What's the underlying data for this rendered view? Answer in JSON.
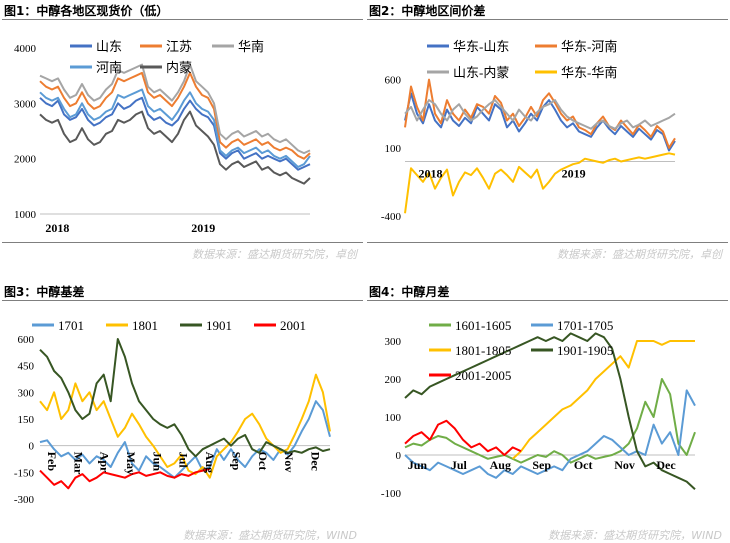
{
  "panels": [
    {
      "title": "图1：中醇各地区现货价（低）",
      "source": "数据来源：盛达期货研究院，卓创"
    },
    {
      "title": "图2：中醇地区间价差",
      "source": "数据来源：盛达期货研究院，卓创"
    },
    {
      "title": "图3：中醇基差",
      "source": "数据来源：盛达期货研究院，WIND"
    },
    {
      "title": "图4：中醇月差",
      "source": "数据来源：盛达期货研究院，WIND"
    }
  ],
  "chart_data": [
    {
      "type": "line",
      "xlabels": [
        "2018",
        "2019"
      ],
      "ylim": [
        1000,
        4000
      ],
      "yticks": [
        1000,
        2000,
        3000,
        4000
      ],
      "legend": "top",
      "series": [
        {
          "name": "山东",
          "color": "#4472c4",
          "values": [
            3100,
            3000,
            2950,
            3050,
            2800,
            2700,
            2750,
            2900,
            2700,
            2600,
            2650,
            2750,
            2800,
            3000,
            2900,
            2950,
            3050,
            3100,
            2800,
            2700,
            2750,
            2650,
            2600,
            2700,
            2900,
            3050,
            2900,
            2800,
            2750,
            2600,
            2100,
            2000,
            2100,
            2150,
            2000,
            2050,
            2100,
            2000,
            2050,
            2000,
            1950,
            2000,
            1900,
            1800,
            1850,
            1900
          ]
        },
        {
          "name": "江苏",
          "color": "#ed7d31",
          "values": [
            3400,
            3300,
            3250,
            3300,
            3100,
            2950,
            3000,
            3200,
            3000,
            2900,
            2950,
            3100,
            3200,
            3450,
            3400,
            3450,
            3500,
            3550,
            3200,
            3100,
            3150,
            3050,
            2950,
            3100,
            3300,
            3550,
            3300,
            3150,
            3100,
            2900,
            2300,
            2200,
            2300,
            2350,
            2250,
            2300,
            2350,
            2250,
            2300,
            2200,
            2150,
            2200,
            2150,
            2050,
            2000,
            2100
          ]
        },
        {
          "name": "华南",
          "color": "#a5a5a5",
          "values": [
            3500,
            3450,
            3400,
            3450,
            3250,
            3100,
            3150,
            3350,
            3150,
            3050,
            3100,
            3250,
            3350,
            3600,
            3550,
            3600,
            3650,
            3700,
            3300,
            3200,
            3250,
            3150,
            3050,
            3200,
            3400,
            3700,
            3400,
            3300,
            3200,
            3000,
            2450,
            2350,
            2450,
            2500,
            2400,
            2450,
            2500,
            2400,
            2450,
            2350,
            2300,
            2350,
            2250,
            2150,
            2100,
            2150
          ]
        },
        {
          "name": "河南",
          "color": "#5b9bd5",
          "values": [
            3200,
            3100,
            3050,
            3100,
            2900,
            2750,
            2800,
            3000,
            2800,
            2700,
            2750,
            2850,
            2900,
            3150,
            3100,
            3150,
            3200,
            3250,
            2950,
            2850,
            2900,
            2800,
            2700,
            2850,
            3050,
            3200,
            3000,
            2900,
            2850,
            2700,
            2150,
            2050,
            2150,
            2200,
            2100,
            2150,
            2200,
            2100,
            2150,
            2050,
            2000,
            2050,
            1950,
            1850,
            1900,
            2050
          ]
        },
        {
          "name": "内蒙",
          "color": "#595959",
          "values": [
            2800,
            2700,
            2650,
            2700,
            2450,
            2300,
            2350,
            2550,
            2350,
            2250,
            2300,
            2450,
            2500,
            2700,
            2650,
            2700,
            2800,
            2850,
            2550,
            2450,
            2500,
            2400,
            2300,
            2450,
            2700,
            2850,
            2600,
            2500,
            2400,
            2250,
            1900,
            1800,
            1900,
            1950,
            1850,
            1900,
            1950,
            1800,
            1850,
            1750,
            1700,
            1750,
            1650,
            1600,
            1550,
            1650
          ]
        }
      ]
    },
    {
      "type": "line",
      "xlabels": [
        "2018",
        "2019"
      ],
      "ylim": [
        -400,
        700
      ],
      "yticks": [
        -400,
        100,
        600
      ],
      "legend": "top",
      "series": [
        {
          "name": "华东-山东",
          "color": "#4472c4",
          "values": [
            300,
            500,
            350,
            280,
            420,
            300,
            250,
            380,
            300,
            260,
            320,
            280,
            400,
            350,
            300,
            420,
            380,
            250,
            300,
            220,
            280,
            350,
            300,
            400,
            450,
            380,
            300,
            250,
            280,
            220,
            200,
            180,
            250,
            300,
            240,
            200,
            260,
            220,
            180,
            240,
            200,
            160,
            230,
            200,
            80,
            150
          ]
        },
        {
          "name": "华东-河南",
          "color": "#ed7d31",
          "values": [
            250,
            550,
            400,
            300,
            600,
            350,
            280,
            450,
            350,
            300,
            380,
            320,
            420,
            400,
            350,
            480,
            430,
            300,
            350,
            260,
            320,
            400,
            330,
            450,
            500,
            430,
            350,
            300,
            330,
            250,
            230,
            200,
            280,
            330,
            260,
            230,
            300,
            250,
            200,
            270,
            230,
            180,
            260,
            220,
            100,
            170
          ]
        },
        {
          "name": "山东-内蒙",
          "color": "#a5a5a5",
          "values": [
            350,
            400,
            300,
            380,
            450,
            420,
            350,
            300,
            380,
            420,
            350,
            300,
            330,
            380,
            420,
            450,
            400,
            350,
            300,
            380,
            330,
            300,
            360,
            400,
            420,
            450,
            380,
            330,
            300,
            280,
            260,
            240,
            280,
            300,
            260,
            240,
            280,
            300,
            250,
            270,
            300,
            260,
            280,
            300,
            320,
            350
          ]
        },
        {
          "name": "华东-华南",
          "color": "#ffc000",
          "values": [
            -380,
            -50,
            -100,
            -150,
            -80,
            -200,
            -120,
            -60,
            -250,
            -150,
            -80,
            -100,
            -50,
            -120,
            -200,
            -90,
            -60,
            -100,
            -150,
            -40,
            -80,
            -120,
            -60,
            -200,
            -150,
            -90,
            -60,
            -40,
            -20,
            -10,
            20,
            10,
            0,
            -10,
            10,
            20,
            0,
            10,
            20,
            30,
            20,
            30,
            40,
            50,
            60,
            50
          ]
        }
      ]
    },
    {
      "type": "line",
      "xlabels": [
        "Feb",
        "Mar",
        "Apr",
        "May",
        "Jun",
        "Jul",
        "Aug",
        "Sep",
        "Oct",
        "Nov",
        "Dec"
      ],
      "ylim": [
        -300,
        600
      ],
      "yticks": [
        -300,
        -150,
        0,
        150,
        300,
        450,
        600
      ],
      "legend": "top",
      "series": [
        {
          "name": "1701",
          "color": "#5b9bd5",
          "values": [
            20,
            30,
            -20,
            -60,
            -40,
            -80,
            -50,
            -100,
            -60,
            -80,
            -120,
            -40,
            20,
            -100,
            -140,
            -60,
            -100,
            -120,
            -150,
            -180,
            -140,
            -100,
            -60,
            -140,
            -120,
            -20,
            -80,
            -20,
            -80,
            -120,
            -60,
            -20,
            -40,
            -80,
            -20,
            -50,
            0,
            80,
            150,
            250,
            200,
            50
          ]
        },
        {
          "name": "1801",
          "color": "#ffc000",
          "values": [
            250,
            200,
            300,
            150,
            200,
            350,
            250,
            300,
            200,
            250,
            150,
            50,
            100,
            180,
            120,
            50,
            0,
            -60,
            -120,
            -100,
            -50,
            -140,
            -160,
            -120,
            -180,
            -60,
            -20,
            20,
            80,
            150,
            180,
            120,
            40,
            0,
            -40,
            -20,
            60,
            150,
            250,
            400,
            300,
            80
          ]
        },
        {
          "name": "1901",
          "color": "#375623",
          "values": [
            540,
            500,
            420,
            380,
            300,
            200,
            150,
            180,
            350,
            400,
            250,
            600,
            500,
            350,
            250,
            200,
            150,
            120,
            100,
            120,
            60,
            -20,
            -60,
            -20,
            0,
            20,
            40,
            0,
            40,
            60,
            -20,
            -40,
            20,
            0,
            -20,
            -40,
            -30,
            -40,
            -20,
            -10,
            -30,
            -20
          ]
        },
        {
          "name": "2001",
          "color": "#ff0000",
          "values": [
            -140,
            -180,
            -220,
            -200,
            -240,
            -180,
            -160,
            -200,
            -180,
            -150,
            -160,
            -170,
            -180,
            -160,
            -150,
            -170,
            -160,
            -150,
            -170,
            -180,
            -160,
            -170,
            -150,
            -140,
            -130,
            null,
            null,
            null,
            null,
            null,
            null,
            null,
            null,
            null,
            null,
            null,
            null,
            null,
            null,
            null,
            null,
            null
          ]
        }
      ]
    },
    {
      "type": "line",
      "xlabels": [
        "Jun",
        "Jul",
        "Aug",
        "Sep",
        "Oct",
        "Nov",
        "Dec"
      ],
      "ylim": [
        -100,
        300
      ],
      "yticks": [
        -100,
        0,
        100,
        200,
        300
      ],
      "legend": "top",
      "series": [
        {
          "name": "1601-1605",
          "color": "#70ad47",
          "values": [
            20,
            30,
            25,
            40,
            50,
            45,
            30,
            20,
            10,
            0,
            -10,
            -5,
            0,
            -10,
            -20,
            -10,
            0,
            -5,
            10,
            0,
            -20,
            -10,
            0,
            -10,
            -5,
            0,
            10,
            30,
            70,
            140,
            100,
            200,
            160,
            30,
            0,
            60
          ]
        },
        {
          "name": "1701-1705",
          "color": "#5b9bd5",
          "values": [
            0,
            -20,
            -30,
            -40,
            -20,
            -30,
            -40,
            -50,
            -40,
            -30,
            -50,
            -60,
            -40,
            -50,
            -30,
            -40,
            -50,
            -40,
            -30,
            -40,
            -10,
            0,
            10,
            30,
            50,
            40,
            20,
            0,
            10,
            0,
            80,
            30,
            60,
            0,
            170,
            130
          ]
        },
        {
          "name": "1801-1805",
          "color": "#ffc000",
          "values": [
            null,
            null,
            null,
            null,
            null,
            null,
            null,
            null,
            null,
            null,
            null,
            null,
            null,
            -10,
            10,
            40,
            60,
            80,
            100,
            120,
            130,
            150,
            170,
            200,
            220,
            240,
            260,
            230,
            300,
            300,
            300,
            290,
            300,
            300,
            300,
            300
          ]
        },
        {
          "name": "1901-1905",
          "color": "#375623",
          "values": [
            150,
            170,
            160,
            180,
            190,
            200,
            210,
            220,
            230,
            240,
            250,
            260,
            270,
            280,
            290,
            300,
            310,
            300,
            310,
            300,
            320,
            310,
            300,
            320,
            310,
            280,
            200,
            100,
            10,
            -30,
            -20,
            -40,
            -50,
            -60,
            -70,
            -90
          ]
        },
        {
          "name": "2001-2005",
          "color": "#ff0000",
          "values": [
            30,
            50,
            60,
            40,
            80,
            90,
            70,
            40,
            20,
            30,
            10,
            20,
            0,
            20,
            10,
            null,
            null,
            null,
            null,
            null,
            null,
            null,
            null,
            null,
            null,
            null,
            null,
            null,
            null,
            null,
            null,
            null,
            null,
            null,
            null,
            null
          ]
        }
      ]
    }
  ]
}
